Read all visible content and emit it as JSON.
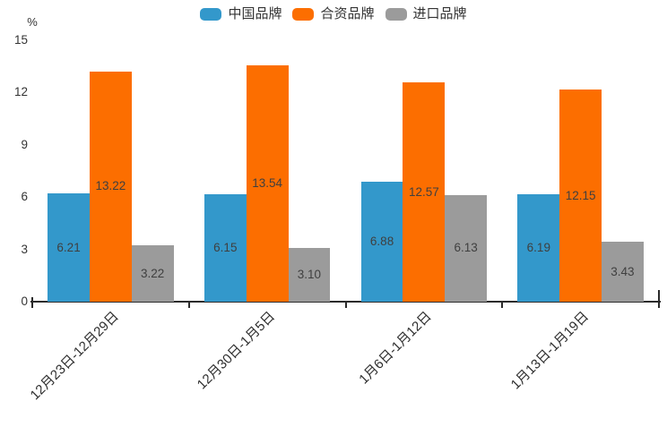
{
  "chart_data": {
    "type": "bar",
    "title": "",
    "unit_label": "%",
    "legend_position": "top",
    "grid": false,
    "categories": [
      "12月23日-12月29日",
      "12月30日-1月5日",
      "1月6日-1月12日",
      "1月13日-1月19日"
    ],
    "series": [
      {
        "name": "中国品牌",
        "color": "#3398CB",
        "values": [
          6.21,
          6.15,
          6.88,
          6.19
        ]
      },
      {
        "name": "合资品牌",
        "color": "#FC6E00",
        "values": [
          13.22,
          13.54,
          12.57,
          12.15
        ]
      },
      {
        "name": "进口品牌",
        "color": "#9B9B9B",
        "values": [
          3.22,
          3.1,
          6.13,
          3.43
        ]
      }
    ],
    "y_axis": {
      "min": 0,
      "max": 15,
      "ticks": [
        0,
        3,
        6,
        9,
        12,
        15
      ]
    },
    "value_label_decimals": 2,
    "colors": {
      "axis": "#2b2b2b",
      "tick_text": "#333333",
      "value_label_text": "#3f3f3f",
      "background": "#ffffff"
    }
  }
}
